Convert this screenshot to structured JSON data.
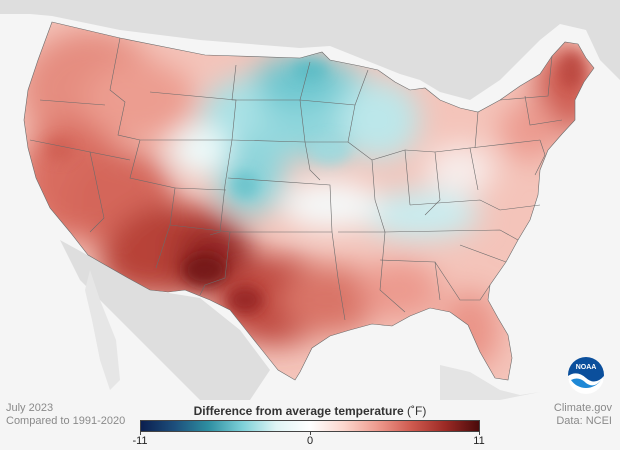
{
  "footer": {
    "period": "July 2023",
    "baseline": "Compared to 1991-2020",
    "credit_site": "Climate.gov",
    "credit_data": "Data: NCEI"
  },
  "legend": {
    "title": "Difference from average temperature",
    "unit": "(˚F)",
    "min_label": "-11",
    "mid_label": "0",
    "max_label": "11",
    "stops": [
      "#0b1f4f",
      "#1d4f7c",
      "#2e8fa1",
      "#7dd0d8",
      "#dff4f5",
      "#ffffff",
      "#fbd6cd",
      "#ee9a8e",
      "#cf5a4f",
      "#9c2a25",
      "#4a0b0b"
    ]
  },
  "logo": {
    "text": "NOAA",
    "icon": "noaa-logo-icon"
  },
  "colors": {
    "background": "#f5f5f5",
    "land_outside": "#dedede",
    "water": "#f5f5f5",
    "state_lines": "#6b6b6b"
  }
}
